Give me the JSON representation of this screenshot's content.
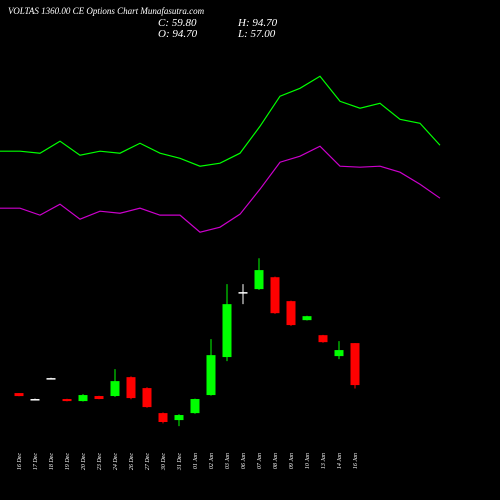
{
  "chart_data": [
    {
      "type": "candlestick",
      "title": "VOLTAS 1360.00 CE Options Chart Munafasutra.com",
      "ohlc_labels": {
        "close": "C: 59.80",
        "high": "H: 94.70",
        "open": "O: 94.70",
        "low": "L: 57.00"
      },
      "categories": [
        "16 Dec",
        "17 Dec",
        "18 Dec",
        "19 Dec",
        "20 Dec",
        "23 Dec",
        "24 Dec",
        "26 Dec",
        "27 Dec",
        "30 Dec",
        "31 Dec",
        "01 Jan",
        "02 Jan",
        "03 Jan",
        "06 Jan",
        "07 Jan",
        "08 Jan",
        "09 Jan",
        "10 Jan",
        "13 Jan",
        "14 Jan",
        "16 Jan"
      ],
      "open": [
        53.15,
        48.2,
        65.6,
        48.2,
        46.5,
        50.7,
        50.7,
        66.4,
        57.3,
        36.5,
        30.7,
        36.5,
        51.5,
        83.1,
        137.1,
        139.6,
        149.5,
        129.6,
        113.8,
        101.3,
        83.9,
        94.7
      ],
      "close": [
        50.66,
        48.2,
        65.6,
        46.5,
        51.5,
        48.2,
        63.1,
        49.0,
        41.5,
        29.1,
        34.9,
        48.2,
        84.7,
        127.1,
        137.1,
        155.4,
        119.6,
        109.7,
        117.1,
        95.5,
        88.9,
        59.8
      ],
      "high": [
        53.2,
        48.5,
        65.9,
        48.4,
        52.3,
        50.9,
        73.1,
        67.0,
        58.0,
        37.0,
        35.5,
        48.5,
        98.0,
        143.7,
        143.7,
        165.3,
        150.0,
        130.0,
        117.5,
        101.6,
        96.4,
        94.7
      ],
      "low": [
        50.5,
        48.0,
        65.3,
        46.3,
        46.2,
        48.0,
        50.0,
        48.0,
        41.0,
        28.0,
        25.7,
        36.0,
        51.0,
        79.7,
        127.1,
        139.0,
        119.0,
        109.0,
        113.5,
        95.0,
        81.4,
        57.0
      ],
      "up_color": "#00ff00",
      "down_color": "#ff0000",
      "flat_color": "#ffffff",
      "ylim": [
        0,
        380
      ]
    },
    {
      "type": "line",
      "series": [
        {
          "color": "#00ff00",
          "values": [
            254.3,
            254.3,
            252.6,
            262.6,
            250.9,
            254.3,
            252.6,
            260.9,
            252.6,
            248.4,
            241.8,
            244.3,
            252.6,
            275.0,
            300.0,
            306.6,
            316.6,
            295.8,
            290.0,
            294.1,
            280.8,
            277.5,
            259.2
          ]
        },
        {
          "color": "#cc00cc",
          "values": [
            206.9,
            206.9,
            201.1,
            210.2,
            197.7,
            204.4,
            202.7,
            206.9,
            201.1,
            201.1,
            186.9,
            191.1,
            201.9,
            222.7,
            245.1,
            250.1,
            258.4,
            241.8,
            241.0,
            241.8,
            236.8,
            226.8,
            215.2
          ]
        }
      ],
      "ylim": [
        0,
        380
      ]
    }
  ]
}
